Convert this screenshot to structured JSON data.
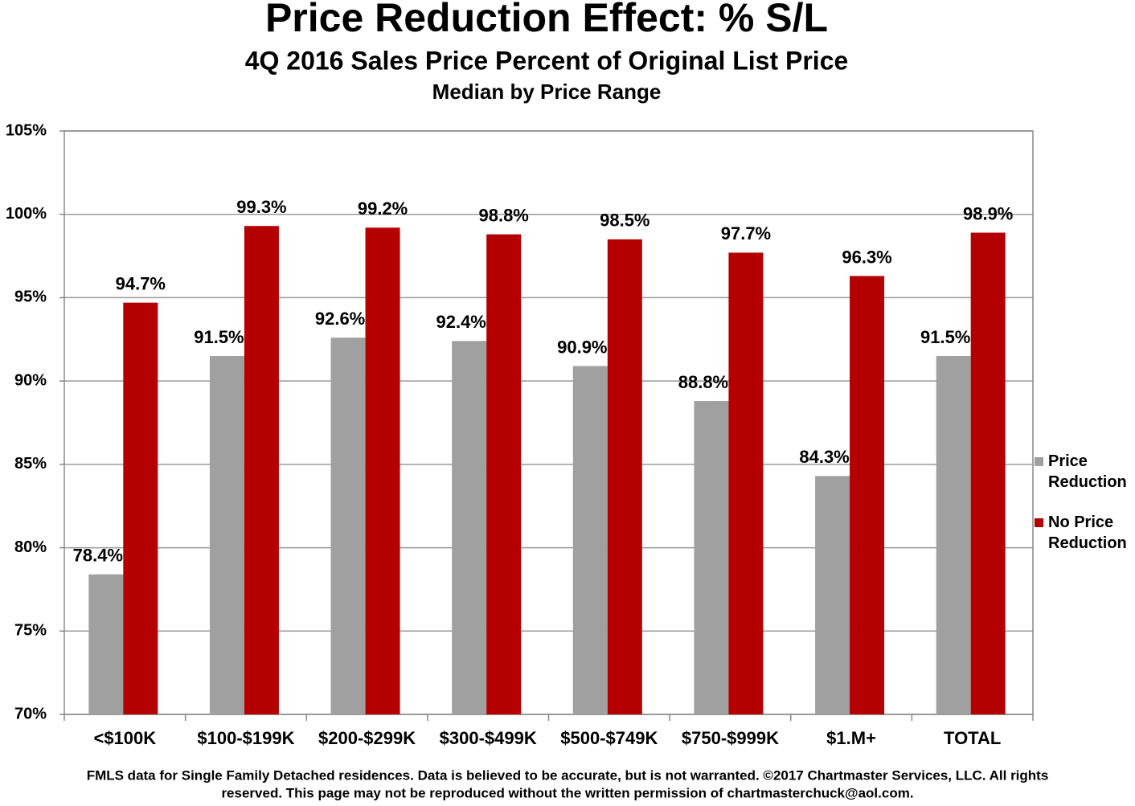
{
  "chart_data": {
    "type": "bar",
    "title": "Price Reduction Effect: % S/L",
    "subtitle": "4Q 2016 Sales Price Percent of Original List  Price",
    "subtitle2": "Median by Price Range",
    "footnote": [
      "FMLS data for Single Family Detached residences.  Data is believed to be accurate, but is not warranted.   ©2017  Chartmaster Services, LLC.  All rights",
      "reserved. This page may not be reproduced without the written permission of chartmasterchuck@aol.com."
    ],
    "categories": [
      "<$100K",
      "$100-$199K",
      "$200-$299K",
      "$300-$499K",
      "$500-$749K",
      "$750-$999K",
      "$1.M+",
      "TOTAL"
    ],
    "series": [
      {
        "name": "Price Reduction",
        "color": "#a0a0a0",
        "values": [
          78.4,
          91.5,
          92.6,
          92.4,
          90.9,
          88.8,
          84.3,
          91.5
        ],
        "value_labels": [
          "78.4%",
          "91.5%",
          "92.6%",
          "92.4%",
          "90.9%",
          "88.8%",
          "84.3%",
          "91.5%"
        ]
      },
      {
        "name": "No Price Reduction",
        "color": "#b40000",
        "values": [
          94.7,
          99.3,
          99.2,
          98.8,
          98.5,
          97.7,
          96.3,
          98.9
        ],
        "value_labels": [
          "94.7%",
          "99.3%",
          "99.2%",
          "98.8%",
          "98.5%",
          "97.7%",
          "96.3%",
          "98.9%"
        ]
      }
    ],
    "ylim": [
      70,
      105
    ],
    "yticks": [
      {
        "value": 70,
        "label": "70%"
      },
      {
        "value": 75,
        "label": "75%"
      },
      {
        "value": 80,
        "label": "80%"
      },
      {
        "value": 85,
        "label": "85%"
      },
      {
        "value": 90,
        "label": "90%"
      },
      {
        "value": 95,
        "label": "95%"
      },
      {
        "value": 100,
        "label": "100%"
      },
      {
        "value": 105,
        "label": "105%"
      }
    ],
    "grid": true,
    "legend": "right"
  }
}
